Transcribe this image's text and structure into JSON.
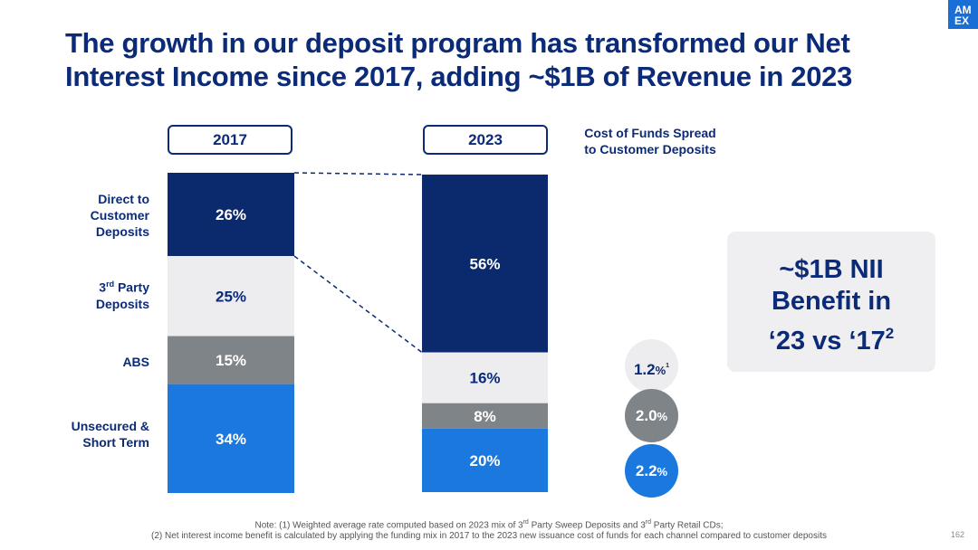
{
  "title": {
    "line1": "The growth in our deposit program has transformed our Net",
    "line2": "Interest Income since 2017, adding ~$1B of Revenue in 2023"
  },
  "logo": {
    "line1": "AM",
    "line2": "EX"
  },
  "cost_of_funds_header": {
    "line1": "Cost of Funds Spread",
    "line2": "to Customer Deposits"
  },
  "benefit_box": {
    "line1": "~$1B NII",
    "line2": "Benefit in",
    "line3": "‘23 vs ‘17",
    "sup": "2"
  },
  "footnote": {
    "line1_a": "Note: (1) Weighted average rate computed based on 2023 mix of 3",
    "rd": "rd",
    "line1_b": " Party Sweep Deposits and 3",
    "line1_c": " Party Retail CDs;",
    "line2": "(2) Net interest income benefit is calculated by applying the funding mix in 2017 to the 2023 new issuance cost of funds for each channel compared to customer deposits"
  },
  "page_number": "162",
  "labels": {
    "direct": {
      "l1": "Direct to",
      "l2": "Customer",
      "l3": "Deposits"
    },
    "third_party": {
      "l1a": "3",
      "sup": "rd",
      "l1b": " Party",
      "l2": "Deposits"
    },
    "abs": {
      "l1": "ABS"
    },
    "unsecured": {
      "l1": "Unsecured &",
      "l2": "Short Term"
    }
  },
  "spread_circles": [
    {
      "value": "1.2",
      "unit": "%",
      "sup": "1"
    },
    {
      "value": "2.0",
      "unit": "%",
      "sup": ""
    },
    {
      "value": "2.2",
      "unit": "%",
      "sup": ""
    }
  ],
  "colors": {
    "direct": "#0b2a6e",
    "third_party": "#ededf0",
    "abs": "#7f8489",
    "unsecured": "#1a78df",
    "title": "#0b2a77"
  },
  "chart_data": {
    "type": "bar",
    "stacked": true,
    "percent_stacked": true,
    "categories": [
      "2017",
      "2023"
    ],
    "series": [
      {
        "name": "Direct to Customer Deposits",
        "values": [
          26,
          56
        ],
        "labels": [
          "26%",
          "56%"
        ]
      },
      {
        "name": "3rd Party Deposits",
        "values": [
          25,
          16
        ],
        "labels": [
          "25%",
          "16%"
        ]
      },
      {
        "name": "ABS",
        "values": [
          15,
          8
        ],
        "labels": [
          "15%",
          "8%"
        ]
      },
      {
        "name": "Unsecured & Short Term",
        "values": [
          34,
          20
        ],
        "labels": [
          "34%",
          "20%"
        ]
      }
    ],
    "ylim": [
      0,
      100
    ],
    "legend": "left"
  }
}
